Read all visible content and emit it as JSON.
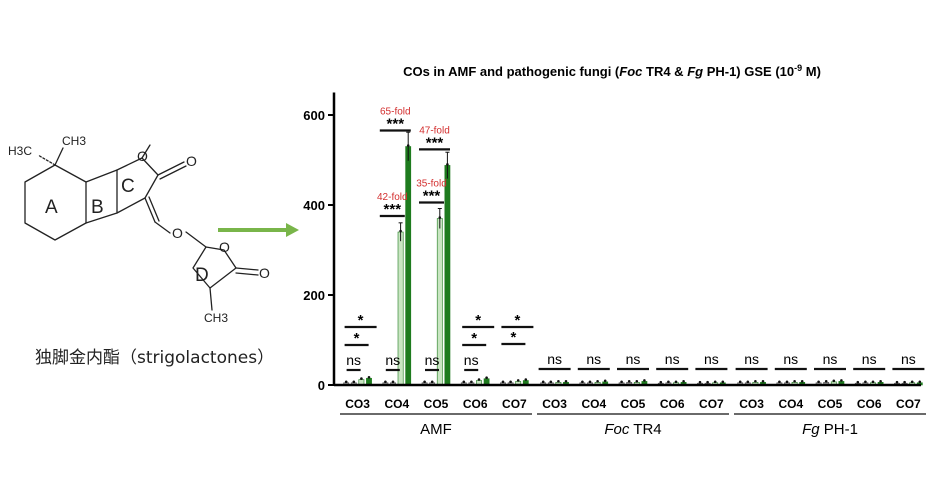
{
  "structure": {
    "methyl_top": "CH3",
    "methyl_left": "H3C",
    "methyl_bottom": "CH3",
    "oxygen_atom": "O",
    "ring_labels": [
      "A",
      "B",
      "C",
      "D"
    ],
    "compound_name": "独脚金内酯（strigolactones）"
  },
  "colors": {
    "arrow": "#79b54a",
    "bar_dark": "#1e7b1e",
    "bar_light": "#c9e5c2",
    "fold_text": "#d32f2f",
    "axis": "#000000"
  },
  "chart_data": {
    "type": "bar",
    "title_parts": [
      "COs in AMF and pathogenic fungi (",
      "Foc",
      " TR4 & ",
      "Fg",
      " PH-1) GSE (10",
      "-9",
      " M)"
    ],
    "ylim": [
      0,
      650
    ],
    "yticks": [
      0,
      200,
      400,
      600
    ],
    "groups": [
      {
        "name_parts": [
          "AMF"
        ],
        "categories": [
          {
            "label": "CO3",
            "values": [
              5,
              5,
              12,
              15
            ],
            "sig": [
              {
                "text": "*"
              },
              {
                "text": "*"
              },
              {
                "text": "ns"
              }
            ]
          },
          {
            "label": "CO4",
            "values": [
              5,
              5,
              340,
              530
            ],
            "sig": [
              {
                "text": "***",
                "fold": "65-fold"
              },
              {
                "text": "***",
                "fold": "42-fold"
              },
              {
                "text": "ns"
              }
            ]
          },
          {
            "label": "CO5",
            "values": [
              5,
              5,
              370,
              488
            ],
            "sig": [
              {
                "text": "***",
                "fold": "47-fold"
              },
              {
                "text": "***",
                "fold": "35-fold"
              },
              {
                "text": "ns"
              }
            ]
          },
          {
            "label": "CO6",
            "values": [
              5,
              5,
              10,
              14
            ],
            "sig": [
              {
                "text": "*"
              },
              {
                "text": "*"
              },
              {
                "text": "ns"
              }
            ]
          },
          {
            "label": "CO7",
            "values": [
              5,
              5,
              8,
              10
            ],
            "sig": [
              {
                "text": "*"
              },
              {
                "text": "*"
              }
            ]
          }
        ]
      },
      {
        "name_parts": [
          "Foc",
          " TR4"
        ],
        "categories": [
          {
            "label": "CO3",
            "values": [
              5,
              5,
              6,
              6
            ],
            "sig": [
              {
                "text": "ns"
              }
            ]
          },
          {
            "label": "CO4",
            "values": [
              5,
              5,
              6,
              7
            ],
            "sig": [
              {
                "text": "ns"
              }
            ]
          },
          {
            "label": "CO5",
            "values": [
              5,
              6,
              6,
              8
            ],
            "sig": [
              {
                "text": "ns"
              }
            ]
          },
          {
            "label": "CO6",
            "values": [
              4,
              5,
              5,
              6
            ],
            "sig": [
              {
                "text": "ns"
              }
            ]
          },
          {
            "label": "CO7",
            "values": [
              4,
              4,
              5,
              5
            ],
            "sig": [
              {
                "text": "ns"
              }
            ]
          }
        ]
      },
      {
        "name_parts": [
          "Fg",
          " PH-1"
        ],
        "categories": [
          {
            "label": "CO3",
            "values": [
              5,
              5,
              6,
              6
            ],
            "sig": [
              {
                "text": "ns"
              }
            ]
          },
          {
            "label": "CO4",
            "values": [
              5,
              5,
              6,
              6
            ],
            "sig": [
              {
                "text": "ns"
              }
            ]
          },
          {
            "label": "CO5",
            "values": [
              5,
              6,
              7,
              8
            ],
            "sig": [
              {
                "text": "ns"
              }
            ]
          },
          {
            "label": "CO6",
            "values": [
              4,
              5,
              5,
              6
            ],
            "sig": [
              {
                "text": "ns"
              }
            ]
          },
          {
            "label": "CO7",
            "values": [
              4,
              4,
              5,
              5
            ],
            "sig": [
              {
                "text": "ns"
              }
            ]
          }
        ]
      }
    ]
  }
}
